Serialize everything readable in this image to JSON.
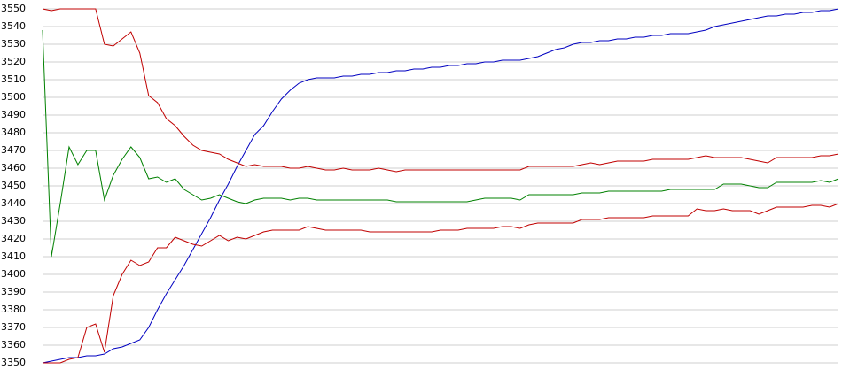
{
  "chart_data": {
    "type": "line",
    "grid": true,
    "ylim": [
      3350,
      3550
    ],
    "yticks": [
      3350,
      3360,
      3370,
      3380,
      3390,
      3400,
      3410,
      3420,
      3430,
      3440,
      3450,
      3460,
      3470,
      3480,
      3490,
      3500,
      3510,
      3520,
      3530,
      3540,
      3550
    ],
    "series": [
      {
        "color": "#0000c0",
        "values": [
          3350,
          3351,
          3352,
          3353,
          3353,
          3354,
          3354,
          3355,
          3358,
          3359,
          3361,
          3363,
          3370,
          3380,
          3389,
          3397,
          3405,
          3414,
          3423,
          3432,
          3442,
          3451,
          3461,
          3470,
          3479,
          3484,
          3492,
          3499,
          3504,
          3508,
          3510,
          3511,
          3511,
          3511,
          3512,
          3512,
          3513,
          3513,
          3514,
          3514,
          3515,
          3515,
          3516,
          3516,
          3517,
          3517,
          3518,
          3518,
          3519,
          3519,
          3520,
          3520,
          3521,
          3521,
          3521,
          3522,
          3523,
          3525,
          3527,
          3528,
          3530,
          3531,
          3531,
          3532,
          3532,
          3533,
          3533,
          3534,
          3534,
          3535,
          3535,
          3536,
          3536,
          3536,
          3537,
          3538,
          3540,
          3541,
          3542,
          3543,
          3544,
          3545,
          3546,
          3546,
          3547,
          3547,
          3548,
          3548,
          3549,
          3549,
          3550
        ]
      },
      {
        "color": "#c00000",
        "values": [
          3550,
          3549,
          3550,
          3550,
          3550,
          3550,
          3550,
          3530,
          3529,
          3533,
          3537,
          3525,
          3501,
          3497,
          3488,
          3484,
          3478,
          3473,
          3470,
          3469,
          3468,
          3465,
          3463,
          3461,
          3462,
          3461,
          3461,
          3461,
          3460,
          3460,
          3461,
          3460,
          3459,
          3459,
          3460,
          3459,
          3459,
          3459,
          3460,
          3459,
          3458,
          3459,
          3459,
          3459,
          3459,
          3459,
          3459,
          3459,
          3459,
          3459,
          3459,
          3459,
          3459,
          3459,
          3459,
          3461,
          3461,
          3461,
          3461,
          3461,
          3461,
          3462,
          3463,
          3462,
          3463,
          3464,
          3464,
          3464,
          3464,
          3465,
          3465,
          3465,
          3465,
          3465,
          3466,
          3467,
          3466,
          3466,
          3466,
          3466,
          3465,
          3464,
          3463,
          3466,
          3466,
          3466,
          3466,
          3466,
          3467,
          3467,
          3468
        ]
      },
      {
        "color": "#008000",
        "values": [
          3538,
          3410,
          3440,
          3472,
          3462,
          3470,
          3470,
          3442,
          3456,
          3465,
          3472,
          3466,
          3454,
          3455,
          3452,
          3454,
          3448,
          3445,
          3442,
          3443,
          3445,
          3443,
          3441,
          3440,
          3442,
          3443,
          3443,
          3443,
          3442,
          3443,
          3443,
          3442,
          3442,
          3442,
          3442,
          3442,
          3442,
          3442,
          3442,
          3442,
          3441,
          3441,
          3441,
          3441,
          3441,
          3441,
          3441,
          3441,
          3441,
          3442,
          3443,
          3443,
          3443,
          3443,
          3442,
          3445,
          3445,
          3445,
          3445,
          3445,
          3445,
          3446,
          3446,
          3446,
          3447,
          3447,
          3447,
          3447,
          3447,
          3447,
          3447,
          3448,
          3448,
          3448,
          3448,
          3448,
          3448,
          3451,
          3451,
          3451,
          3450,
          3449,
          3449,
          3452,
          3452,
          3452,
          3452,
          3452,
          3453,
          3452,
          3454
        ]
      },
      {
        "color": "#c00000",
        "values": [
          3350,
          3350,
          3350,
          3352,
          3353,
          3370,
          3372,
          3356,
          3388,
          3400,
          3408,
          3405,
          3407,
          3415,
          3415,
          3421,
          3419,
          3417,
          3416,
          3419,
          3422,
          3419,
          3421,
          3420,
          3422,
          3424,
          3425,
          3425,
          3425,
          3425,
          3427,
          3426,
          3425,
          3425,
          3425,
          3425,
          3425,
          3424,
          3424,
          3424,
          3424,
          3424,
          3424,
          3424,
          3424,
          3425,
          3425,
          3425,
          3426,
          3426,
          3426,
          3426,
          3427,
          3427,
          3426,
          3428,
          3429,
          3429,
          3429,
          3429,
          3429,
          3431,
          3431,
          3431,
          3432,
          3432,
          3432,
          3432,
          3432,
          3433,
          3433,
          3433,
          3433,
          3433,
          3437,
          3436,
          3436,
          3437,
          3436,
          3436,
          3436,
          3434,
          3436,
          3438,
          3438,
          3438,
          3438,
          3439,
          3439,
          3438,
          3440
        ]
      }
    ]
  }
}
